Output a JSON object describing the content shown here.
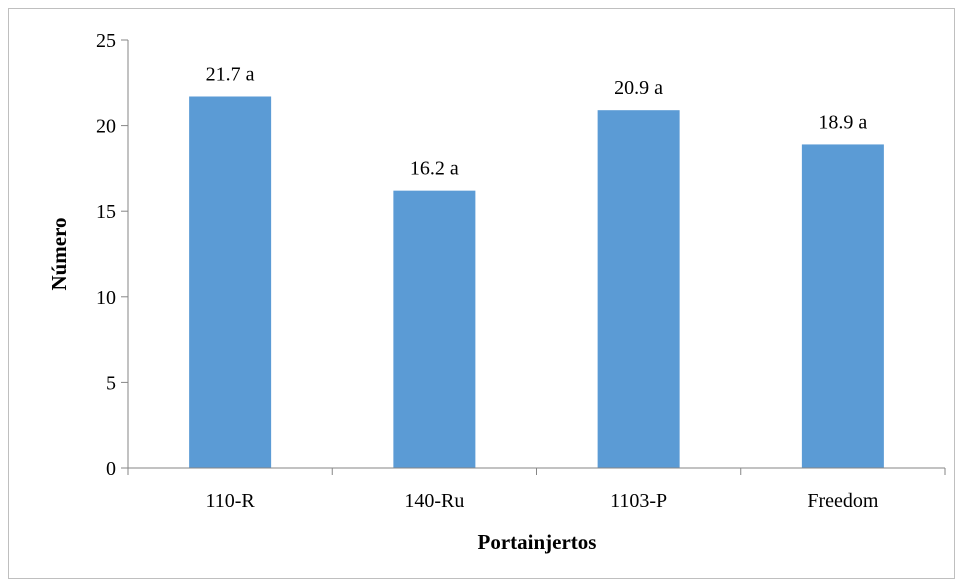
{
  "chart_data": {
    "type": "bar",
    "categories": [
      "110-R",
      "140-Ru",
      "1103-P",
      "Freedom"
    ],
    "values": [
      21.7,
      16.2,
      20.9,
      18.9
    ],
    "data_labels": [
      "21.7 a",
      "16.2 a",
      "20.9 a",
      "18.9 a"
    ],
    "title": "",
    "xlabel": "Portainjertos",
    "ylabel": "Número",
    "ylim": [
      0,
      25
    ],
    "yticks": [
      0,
      5,
      10,
      15,
      20,
      25
    ],
    "grid": false,
    "legend": "none",
    "bar_color": "#5b9bd5",
    "axis_color": "#868686"
  }
}
